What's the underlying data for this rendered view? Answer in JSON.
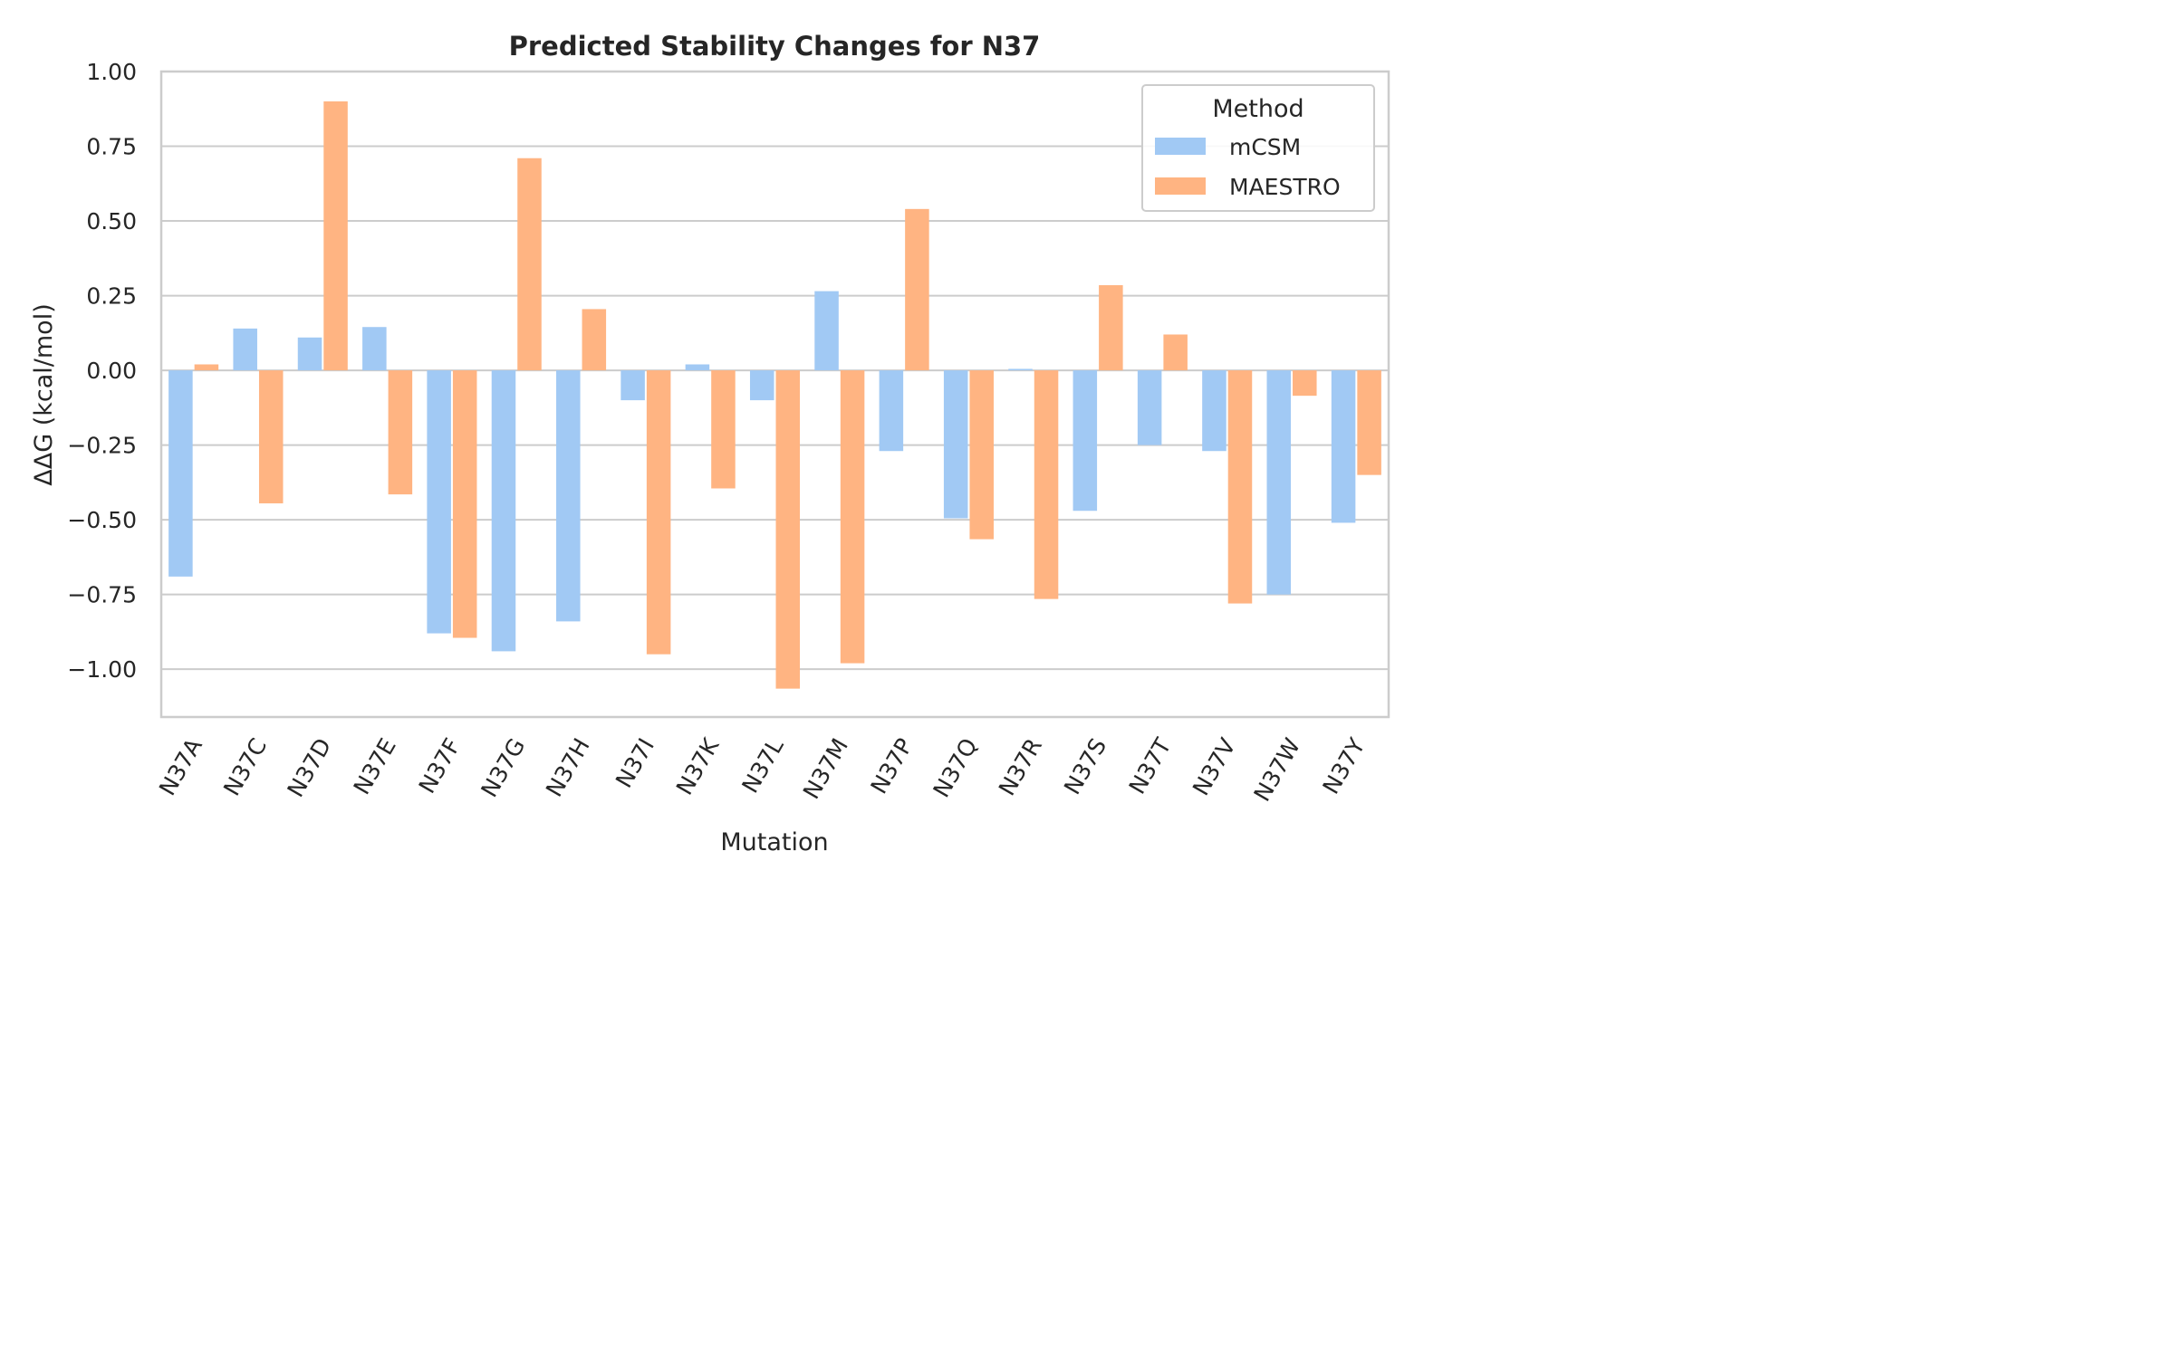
{
  "chart_data": {
    "type": "bar",
    "title": "Predicted Stability Changes for N37",
    "xlabel": "Mutation",
    "ylabel": "ΔΔG (kcal/mol)",
    "ylim": [
      -1.16,
      1.0
    ],
    "yticks": [
      1.0,
      0.75,
      0.5,
      0.25,
      0.0,
      -0.25,
      -0.5,
      -0.75,
      -1.0
    ],
    "ytick_labels": [
      "1.00",
      "0.75",
      "0.50",
      "0.25",
      "0.00",
      "−0.25",
      "−0.50",
      "−0.75",
      "−1.00"
    ],
    "grid": "horizontal",
    "legend": {
      "title": "Method",
      "placement": "top-right"
    },
    "categories": [
      "N37A",
      "N37C",
      "N37D",
      "N37E",
      "N37F",
      "N37G",
      "N37H",
      "N37I",
      "N37K",
      "N37L",
      "N37M",
      "N37P",
      "N37Q",
      "N37R",
      "N37S",
      "N37T",
      "N37V",
      "N37W",
      "N37Y"
    ],
    "series": [
      {
        "name": "mCSM",
        "color": "#a1c9f4",
        "values": [
          -0.69,
          0.14,
          0.11,
          0.145,
          -0.88,
          -0.94,
          -0.84,
          -0.1,
          0.02,
          -0.1,
          0.265,
          -0.27,
          -0.495,
          0.005,
          -0.47,
          -0.25,
          -0.27,
          -0.75,
          -0.51
        ]
      },
      {
        "name": "MAESTRO",
        "color": "#ffb482",
        "values": [
          0.02,
          -0.445,
          0.9,
          -0.415,
          -0.895,
          0.71,
          0.205,
          -0.95,
          -0.395,
          -1.065,
          -0.98,
          0.54,
          -0.565,
          -0.765,
          0.285,
          0.12,
          -0.78,
          -0.085,
          -0.35
        ]
      }
    ]
  }
}
